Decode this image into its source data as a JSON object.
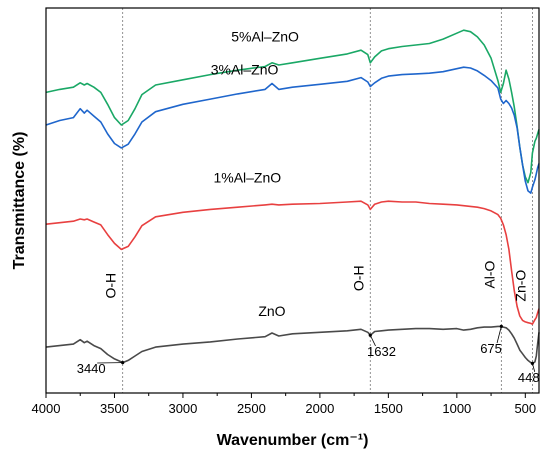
{
  "chart_data": {
    "type": "line",
    "title": "",
    "xlabel": "Wavenumber (cm⁻¹)",
    "ylabel": "Transmittance (%)",
    "xlim": [
      4000,
      400
    ],
    "x_reversed": true,
    "grid": false,
    "legend": "none",
    "x_ticks": [
      4000,
      3500,
      3000,
      2500,
      2000,
      1500,
      1000,
      500
    ],
    "y_ticks": "none",
    "series": [
      {
        "name": "5%Al–ZnO",
        "color": "#1aa866",
        "x": [
          4000,
          3900,
          3800,
          3750,
          3720,
          3700,
          3650,
          3600,
          3550,
          3500,
          3450,
          3400,
          3350,
          3300,
          3200,
          3000,
          2800,
          2600,
          2400,
          2350,
          2300,
          2200,
          2000,
          1800,
          1700,
          1650,
          1632,
          1600,
          1550,
          1500,
          1400,
          1300,
          1200,
          1100,
          1000,
          950,
          900,
          850,
          800,
          750,
          700,
          680,
          660,
          640,
          620,
          600,
          580,
          560,
          540,
          520,
          500,
          480,
          460,
          448,
          430,
          420,
          410,
          400
        ],
        "y": [
          0.6,
          1.0,
          1.3,
          1.9,
          1.6,
          1.8,
          1.3,
          0.6,
          -1.0,
          -2.8,
          -3.8,
          -3.2,
          -1.6,
          0.3,
          1.6,
          2.3,
          3.0,
          3.6,
          4.1,
          4.6,
          4.3,
          4.6,
          5.2,
          5.8,
          6.3,
          5.7,
          4.6,
          5.4,
          6.2,
          6.5,
          6.8,
          7.0,
          7.2,
          7.8,
          8.6,
          9.0,
          8.8,
          8.1,
          7.0,
          5.2,
          2.2,
          0.6,
          1.8,
          3.6,
          2.4,
          0.6,
          -1.4,
          -4.0,
          -6.8,
          -9.2,
          -10.8,
          -11.6,
          -10.2,
          -7.6,
          -6.0,
          -5.6,
          -5.0,
          -4.4
        ]
      },
      {
        "name": "3%Al–ZnO",
        "color": "#1f66cc",
        "x": [
          4000,
          3900,
          3800,
          3750,
          3720,
          3700,
          3650,
          3600,
          3550,
          3500,
          3450,
          3400,
          3350,
          3300,
          3200,
          3000,
          2800,
          2600,
          2400,
          2350,
          2300,
          2200,
          2000,
          1800,
          1700,
          1650,
          1632,
          1600,
          1550,
          1500,
          1400,
          1300,
          1200,
          1100,
          1000,
          950,
          900,
          850,
          800,
          750,
          700,
          680,
          660,
          640,
          620,
          600,
          580,
          560,
          540,
          520,
          500,
          480,
          460,
          448,
          430,
          420,
          410,
          400
        ],
        "y": [
          -3.8,
          -3.2,
          -2.8,
          -1.6,
          -2.2,
          -1.8,
          -2.6,
          -3.4,
          -5.0,
          -6.3,
          -6.9,
          -6.4,
          -5.0,
          -3.4,
          -2.0,
          -1.0,
          -0.3,
          0.4,
          1.0,
          1.8,
          1.0,
          1.3,
          1.7,
          2.1,
          2.6,
          2.0,
          1.4,
          1.9,
          2.5,
          2.8,
          3.0,
          3.1,
          3.2,
          3.4,
          3.8,
          4.0,
          3.9,
          3.5,
          2.9,
          2.2,
          1.2,
          -0.3,
          -0.9,
          -0.5,
          -0.9,
          -1.5,
          -2.5,
          -4.2,
          -6.8,
          -9.2,
          -11.4,
          -12.7,
          -13.0,
          -12.2,
          -11.2,
          -10.4,
          -9.6,
          -9.0
        ]
      },
      {
        "name": "1%Al–ZnO",
        "color": "#e84040",
        "x": [
          4000,
          3900,
          3800,
          3750,
          3720,
          3700,
          3650,
          3600,
          3550,
          3500,
          3450,
          3400,
          3350,
          3300,
          3200,
          3000,
          2800,
          2600,
          2400,
          2350,
          2300,
          2200,
          2000,
          1800,
          1700,
          1650,
          1632,
          1600,
          1550,
          1500,
          1400,
          1300,
          1200,
          1100,
          1000,
          950,
          900,
          850,
          800,
          750,
          700,
          680,
          660,
          640,
          620,
          600,
          580,
          560,
          540,
          520,
          500,
          480,
          460,
          448,
          430,
          420,
          410,
          400
        ],
        "y": [
          -17.2,
          -17.0,
          -16.8,
          -16.5,
          -16.6,
          -16.5,
          -16.9,
          -17.3,
          -18.6,
          -19.8,
          -20.6,
          -20.2,
          -18.9,
          -17.4,
          -16.2,
          -15.6,
          -15.2,
          -14.9,
          -14.6,
          -14.5,
          -14.6,
          -14.5,
          -14.4,
          -14.2,
          -14.1,
          -14.6,
          -15.2,
          -14.5,
          -14.2,
          -14.1,
          -14.2,
          -14.2,
          -14.4,
          -14.5,
          -14.6,
          -14.7,
          -14.8,
          -14.9,
          -15.1,
          -15.4,
          -15.9,
          -16.4,
          -17.3,
          -18.6,
          -20.6,
          -23.5,
          -26.2,
          -28.3,
          -29.6,
          -30.2,
          -30.4,
          -30.5,
          -30.6,
          -30.7,
          -30.1,
          -29.8,
          -29.2,
          -28.6
        ]
      },
      {
        "name": "ZnO",
        "color": "#4a4a4a",
        "x": [
          4000,
          3900,
          3800,
          3750,
          3720,
          3700,
          3650,
          3600,
          3550,
          3500,
          3450,
          3440,
          3400,
          3350,
          3300,
          3200,
          3000,
          2800,
          2600,
          2400,
          2350,
          2300,
          2200,
          2000,
          1800,
          1700,
          1650,
          1632,
          1600,
          1550,
          1500,
          1400,
          1300,
          1200,
          1100,
          1000,
          950,
          900,
          850,
          800,
          750,
          700,
          675,
          660,
          640,
          620,
          600,
          580,
          560,
          540,
          520,
          500,
          480,
          460,
          448,
          430,
          420,
          410,
          400
        ],
        "y": [
          -33.8,
          -33.6,
          -33.4,
          -32.8,
          -33.2,
          -33.0,
          -33.6,
          -34.0,
          -34.8,
          -35.4,
          -35.8,
          -35.9,
          -35.6,
          -35.0,
          -34.4,
          -33.8,
          -33.4,
          -33.1,
          -32.7,
          -32.4,
          -31.9,
          -32.3,
          -32.0,
          -31.8,
          -31.6,
          -31.4,
          -31.8,
          -32.2,
          -31.7,
          -31.6,
          -31.5,
          -31.4,
          -31.3,
          -31.3,
          -31.4,
          -31.3,
          -31.5,
          -31.4,
          -31.2,
          -31.1,
          -31.1,
          -31.0,
          -31.0,
          -31.1,
          -31.2,
          -31.5,
          -32.0,
          -32.6,
          -33.4,
          -34.2,
          -34.7,
          -35.2,
          -35.6,
          -35.9,
          -36.0,
          -35.8,
          -35.0,
          -33.4,
          -31.8
        ]
      }
    ],
    "series_labels": [
      {
        "text": "5%Al–ZnO",
        "x": 2400,
        "y": 7.5
      },
      {
        "text": "3%Al–ZnO",
        "x": 2550,
        "y": 3.0
      },
      {
        "text": "1%Al–ZnO",
        "x": 2530,
        "y": -11.6
      },
      {
        "text": "ZnO",
        "x": 2350,
        "y": -29.6
      }
    ],
    "reference_lines": [
      3440,
      1632,
      675,
      448
    ],
    "annotations": [
      {
        "text": "O-H",
        "x": 3440,
        "y": -25.5,
        "rotate": true
      },
      {
        "text": "O-H",
        "x": 1632,
        "y": -24.5,
        "rotate": true
      },
      {
        "text": "Al-O",
        "x": 675,
        "y": -24.0,
        "rotate": true
      },
      {
        "text": "Zn-O",
        "x": 448,
        "y": -25.5,
        "rotate": true
      }
    ],
    "peak_labels": [
      {
        "text": "3440",
        "x": 3440,
        "y": -35.9,
        "label_x": 3670,
        "label_y": -37.3
      },
      {
        "text": "1632",
        "x": 1632,
        "y": -32.2,
        "label_x": 1550,
        "label_y": -35.0
      },
      {
        "text": "675",
        "x": 675,
        "y": -31.0,
        "label_x": 750,
        "label_y": -34.6
      },
      {
        "text": "448",
        "x": 448,
        "y": -36.0,
        "label_x": 475,
        "label_y": -38.5
      }
    ]
  }
}
